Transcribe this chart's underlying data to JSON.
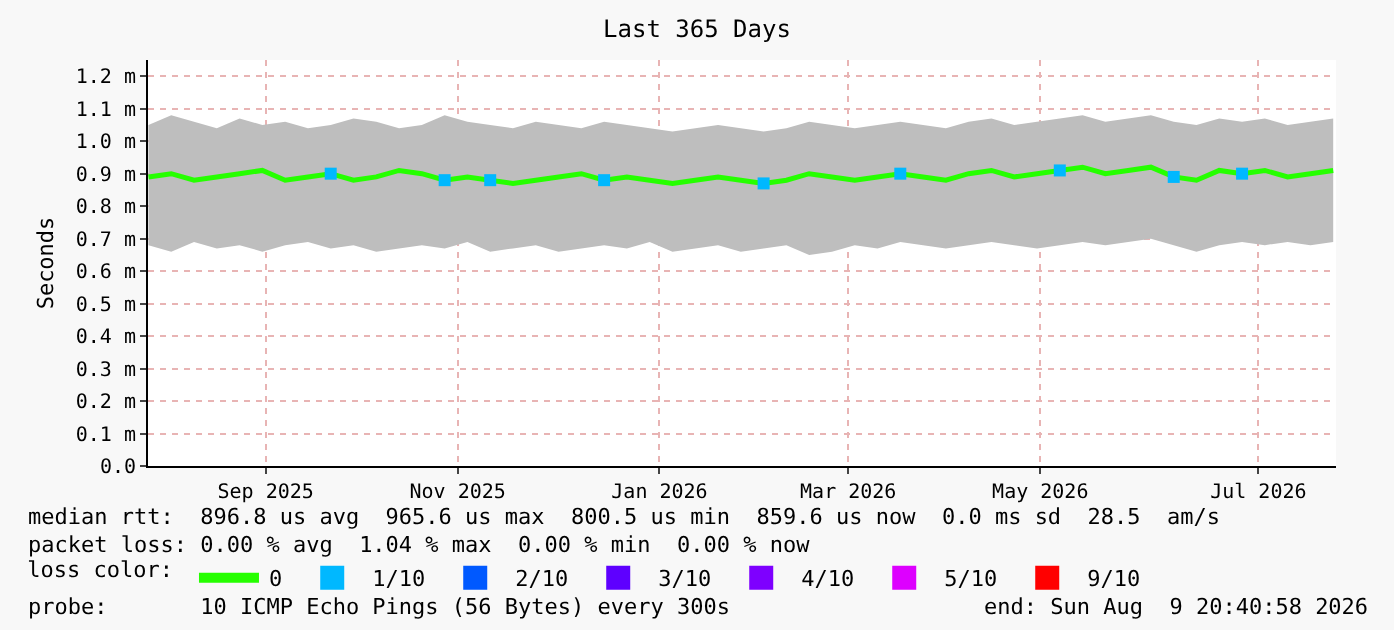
{
  "chart_data": {
    "type": "line",
    "title": "Last 365 Days",
    "ylabel": "Seconds",
    "legend_title": "loss color:",
    "legend": "bottom",
    "grid": true,
    "line_style": "solid",
    "marker": "none",
    "x": [
      "2025-08-10",
      "2025-08-17",
      "2025-08-24",
      "2025-08-31",
      "2025-09-07",
      "2025-09-14",
      "2025-09-21",
      "2025-09-28",
      "2025-10-05",
      "2025-10-12",
      "2025-10-19",
      "2025-10-26",
      "2025-11-02",
      "2025-11-09",
      "2025-11-16",
      "2025-11-23",
      "2025-11-30",
      "2025-12-07",
      "2025-12-14",
      "2025-12-21",
      "2025-12-28",
      "2026-01-04",
      "2026-01-11",
      "2026-01-18",
      "2026-01-25",
      "2026-02-01",
      "2026-02-08",
      "2026-02-15",
      "2026-02-22",
      "2026-03-01",
      "2026-03-08",
      "2026-03-15",
      "2026-03-22",
      "2026-03-29",
      "2026-04-05",
      "2026-04-12",
      "2026-04-19",
      "2026-04-26",
      "2026-05-03",
      "2026-05-10",
      "2026-05-17",
      "2026-05-24",
      "2026-05-31",
      "2026-06-07",
      "2026-06-14",
      "2026-06-21",
      "2026-06-28",
      "2026-07-05",
      "2026-07-12",
      "2026-07-19",
      "2026-07-26",
      "2026-08-02",
      "2026-08-09"
    ],
    "xlim": [
      "2025-08-09T20:40",
      "2026-08-09T20:40"
    ],
    "xticks": [
      {
        "value": "2025-09-15",
        "label": "Sep 2025"
      },
      {
        "value": "2025-11-13",
        "label": "Nov 2025"
      },
      {
        "value": "2026-01-14",
        "label": "Jan 2026"
      },
      {
        "value": "2026-03-13",
        "label": "Mar 2026"
      },
      {
        "value": "2026-05-11",
        "label": "May 2026"
      },
      {
        "value": "2026-07-17",
        "label": "Jul 2026"
      }
    ],
    "ylim": [
      0,
      1.25
    ],
    "yticks": [
      {
        "value": 0,
        "label": "0.0"
      },
      {
        "value": 0.1,
        "label": "0.1 m"
      },
      {
        "value": 0.2,
        "label": "0.2 m"
      },
      {
        "value": 0.3,
        "label": "0.3 m"
      },
      {
        "value": 0.4,
        "label": "0.4 m"
      },
      {
        "value": 0.5,
        "label": "0.5 m"
      },
      {
        "value": 0.6,
        "label": "0.6 m"
      },
      {
        "value": 0.7,
        "label": "0.7 m"
      },
      {
        "value": 0.8,
        "label": "0.8 m"
      },
      {
        "value": 0.9,
        "label": "0.9 m"
      },
      {
        "value": 1.0,
        "label": "1.0 m"
      },
      {
        "value": 1.1,
        "label": "1.1 m"
      },
      {
        "value": 1.2,
        "label": "1.2 m"
      }
    ],
    "series": [
      {
        "name": "0",
        "color": "#26ff00",
        "values": [
          0.89,
          0.9,
          0.88,
          0.89,
          0.9,
          0.91,
          0.88,
          0.89,
          0.9,
          0.88,
          0.89,
          0.91,
          0.9,
          0.88,
          0.89,
          0.88,
          0.87,
          0.88,
          0.89,
          0.9,
          0.88,
          0.89,
          0.88,
          0.87,
          0.88,
          0.89,
          0.88,
          0.87,
          0.88,
          0.9,
          0.89,
          0.88,
          0.89,
          0.9,
          0.89,
          0.88,
          0.9,
          0.91,
          0.89,
          0.9,
          0.91,
          0.92,
          0.9,
          0.91,
          0.92,
          0.89,
          0.88,
          0.91,
          0.9,
          0.91,
          0.89,
          0.9,
          0.91
        ],
        "lower": [
          0.68,
          0.66,
          0.69,
          0.67,
          0.68,
          0.66,
          0.68,
          0.69,
          0.67,
          0.68,
          0.66,
          0.67,
          0.68,
          0.67,
          0.69,
          0.66,
          0.67,
          0.68,
          0.66,
          0.67,
          0.68,
          0.67,
          0.69,
          0.66,
          0.67,
          0.68,
          0.66,
          0.67,
          0.68,
          0.65,
          0.66,
          0.68,
          0.67,
          0.69,
          0.68,
          0.67,
          0.68,
          0.69,
          0.68,
          0.67,
          0.68,
          0.69,
          0.68,
          0.69,
          0.7,
          0.68,
          0.66,
          0.68,
          0.69,
          0.68,
          0.69,
          0.68,
          0.69
        ],
        "upper": [
          1.05,
          1.08,
          1.06,
          1.04,
          1.07,
          1.05,
          1.06,
          1.04,
          1.05,
          1.07,
          1.06,
          1.04,
          1.05,
          1.08,
          1.06,
          1.05,
          1.04,
          1.06,
          1.05,
          1.04,
          1.06,
          1.05,
          1.04,
          1.03,
          1.04,
          1.05,
          1.04,
          1.03,
          1.04,
          1.06,
          1.05,
          1.04,
          1.05,
          1.06,
          1.05,
          1.04,
          1.06,
          1.07,
          1.05,
          1.06,
          1.07,
          1.08,
          1.06,
          1.07,
          1.08,
          1.06,
          1.05,
          1.07,
          1.06,
          1.07,
          1.05,
          1.06,
          1.07
        ]
      },
      {
        "name": "1/10",
        "color": "#00b8ff",
        "type": "scatter",
        "marker": "square",
        "values": [
          null,
          null,
          null,
          null,
          null,
          null,
          null,
          null,
          0.9,
          null,
          null,
          null,
          null,
          0.88,
          null,
          0.88,
          null,
          null,
          null,
          null,
          0.88,
          null,
          null,
          null,
          null,
          null,
          null,
          0.87,
          null,
          null,
          null,
          null,
          null,
          0.9,
          null,
          null,
          null,
          null,
          null,
          null,
          0.91,
          null,
          null,
          null,
          null,
          0.89,
          null,
          null,
          0.9,
          null,
          null,
          null,
          null
        ]
      },
      {
        "name": "2/10",
        "color": "#0059ff",
        "type": "scatter",
        "marker": "square",
        "values": [
          null,
          null,
          null,
          null,
          null,
          null,
          null,
          null,
          null,
          null,
          null,
          null,
          null,
          null,
          null,
          null,
          null,
          null,
          null,
          null,
          null,
          null,
          null,
          null,
          null,
          null,
          null,
          null,
          null,
          null,
          null,
          null,
          null,
          null,
          null,
          null,
          null,
          null,
          null,
          null,
          null,
          null,
          null,
          null,
          null,
          null,
          null,
          null,
          null,
          null,
          null,
          null,
          null
        ]
      },
      {
        "name": "3/10",
        "color": "#5e00ff",
        "type": "scatter",
        "marker": "square",
        "values": [
          null,
          null,
          null,
          null,
          null,
          null,
          null,
          null,
          null,
          null,
          null,
          null,
          null,
          null,
          null,
          null,
          null,
          null,
          null,
          null,
          null,
          null,
          null,
          null,
          null,
          null,
          null,
          null,
          null,
          null,
          null,
          null,
          null,
          null,
          null,
          null,
          null,
          null,
          null,
          null,
          null,
          null,
          null,
          null,
          null,
          null,
          null,
          null,
          null,
          null,
          null,
          null,
          null
        ]
      },
      {
        "name": "4/10",
        "color": "#7e00ff",
        "type": "scatter",
        "marker": "square",
        "values": [
          null,
          null,
          null,
          null,
          null,
          null,
          null,
          null,
          null,
          null,
          null,
          null,
          null,
          null,
          null,
          null,
          null,
          null,
          null,
          null,
          null,
          null,
          null,
          null,
          null,
          null,
          null,
          null,
          null,
          null,
          null,
          null,
          null,
          null,
          null,
          null,
          null,
          null,
          null,
          null,
          null,
          null,
          null,
          null,
          null,
          null,
          null,
          null,
          null,
          null,
          null,
          null,
          null
        ]
      },
      {
        "name": "5/10",
        "color": "#dd00ff",
        "type": "scatter",
        "marker": "square",
        "values": [
          null,
          null,
          null,
          null,
          null,
          null,
          null,
          null,
          null,
          null,
          null,
          null,
          null,
          null,
          null,
          null,
          null,
          null,
          null,
          null,
          null,
          null,
          null,
          null,
          null,
          null,
          null,
          null,
          null,
          null,
          null,
          null,
          null,
          null,
          null,
          null,
          null,
          null,
          null,
          null,
          null,
          null,
          null,
          null,
          null,
          null,
          null,
          null,
          null,
          null,
          null,
          null,
          null
        ]
      },
      {
        "name": "9/10",
        "color": "#ff0000",
        "type": "scatter",
        "marker": "square",
        "values": [
          null,
          null,
          null,
          null,
          null,
          null,
          null,
          null,
          null,
          null,
          null,
          null,
          null,
          null,
          null,
          null,
          null,
          null,
          null,
          null,
          null,
          null,
          null,
          null,
          null,
          null,
          null,
          null,
          null,
          null,
          null,
          null,
          null,
          null,
          null,
          null,
          null,
          null,
          null,
          null,
          null,
          null,
          null,
          null,
          null,
          null,
          null,
          null,
          null,
          null,
          null,
          null,
          null
        ]
      }
    ],
    "annotations": [
      "median rtt:  896.8 us avg  965.6 us max  800.5 us min  859.6 us now  0.0 ms sd  28.5  am/s",
      "packet loss: 0.00 % avg  1.04 % max  0.00 % min  0.00 % now",
      "probe:       10 ICMP Echo Pings (56 Bytes) every 300s",
      "end: Sun Aug  9 20:40:58 2026"
    ]
  }
}
